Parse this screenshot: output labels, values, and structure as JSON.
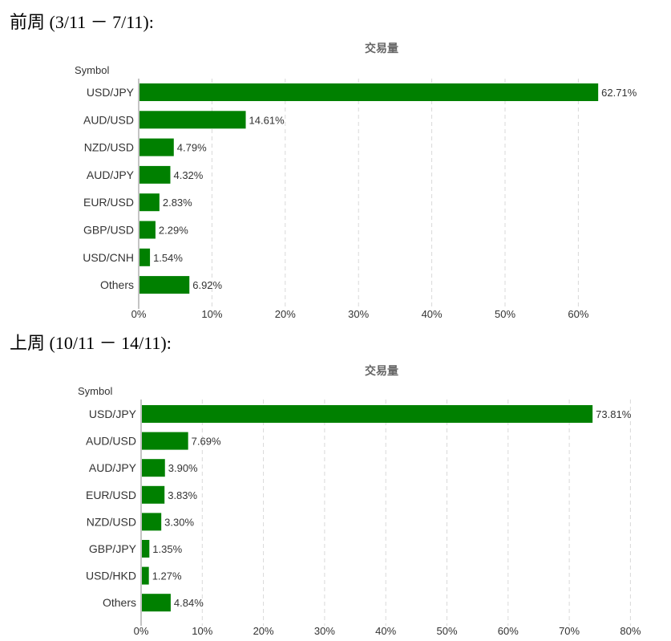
{
  "sections": [
    {
      "heading": "前周 (3/11 － 7/11):"
    },
    {
      "heading": "上周 (10/11 － 14/11):"
    }
  ],
  "chart_data": [
    {
      "type": "bar",
      "orientation": "horizontal",
      "title": "交易量",
      "category_axis_title": "Symbol",
      "categories": [
        "USD/JPY",
        "AUD/USD",
        "NZD/USD",
        "AUD/JPY",
        "EUR/USD",
        "GBP/USD",
        "USD/CNH",
        "Others"
      ],
      "values": [
        62.71,
        14.61,
        4.79,
        4.32,
        2.83,
        2.29,
        1.54,
        6.92
      ],
      "value_labels": [
        "62.71%",
        "14.61%",
        "4.79%",
        "4.32%",
        "2.83%",
        "2.29%",
        "1.54%",
        "6.92%"
      ],
      "xlim": [
        0,
        64
      ],
      "x_ticks": [
        0,
        10,
        20,
        30,
        40,
        50,
        60
      ],
      "x_tick_labels": [
        "0%",
        "10%",
        "20%",
        "30%",
        "40%",
        "50%",
        "60%"
      ],
      "grid": true,
      "bar_color": "#008000"
    },
    {
      "type": "bar",
      "orientation": "horizontal",
      "title": "交易量",
      "category_axis_title": "Symbol",
      "categories": [
        "USD/JPY",
        "AUD/USD",
        "AUD/JPY",
        "EUR/USD",
        "NZD/USD",
        "GBP/JPY",
        "USD/HKD",
        "Others"
      ],
      "values": [
        73.81,
        7.69,
        3.9,
        3.83,
        3.3,
        1.35,
        1.27,
        4.84
      ],
      "value_labels": [
        "73.81%",
        "7.69%",
        "3.90%",
        "3.83%",
        "3.30%",
        "1.35%",
        "1.27%",
        "4.84%"
      ],
      "xlim": [
        0,
        80
      ],
      "x_ticks": [
        0,
        10,
        20,
        30,
        40,
        50,
        60,
        70,
        80
      ],
      "x_tick_labels": [
        "0%",
        "10%",
        "20%",
        "30%",
        "40%",
        "50%",
        "60%",
        "70%",
        "80%"
      ],
      "grid": true,
      "bar_color": "#008000"
    }
  ]
}
